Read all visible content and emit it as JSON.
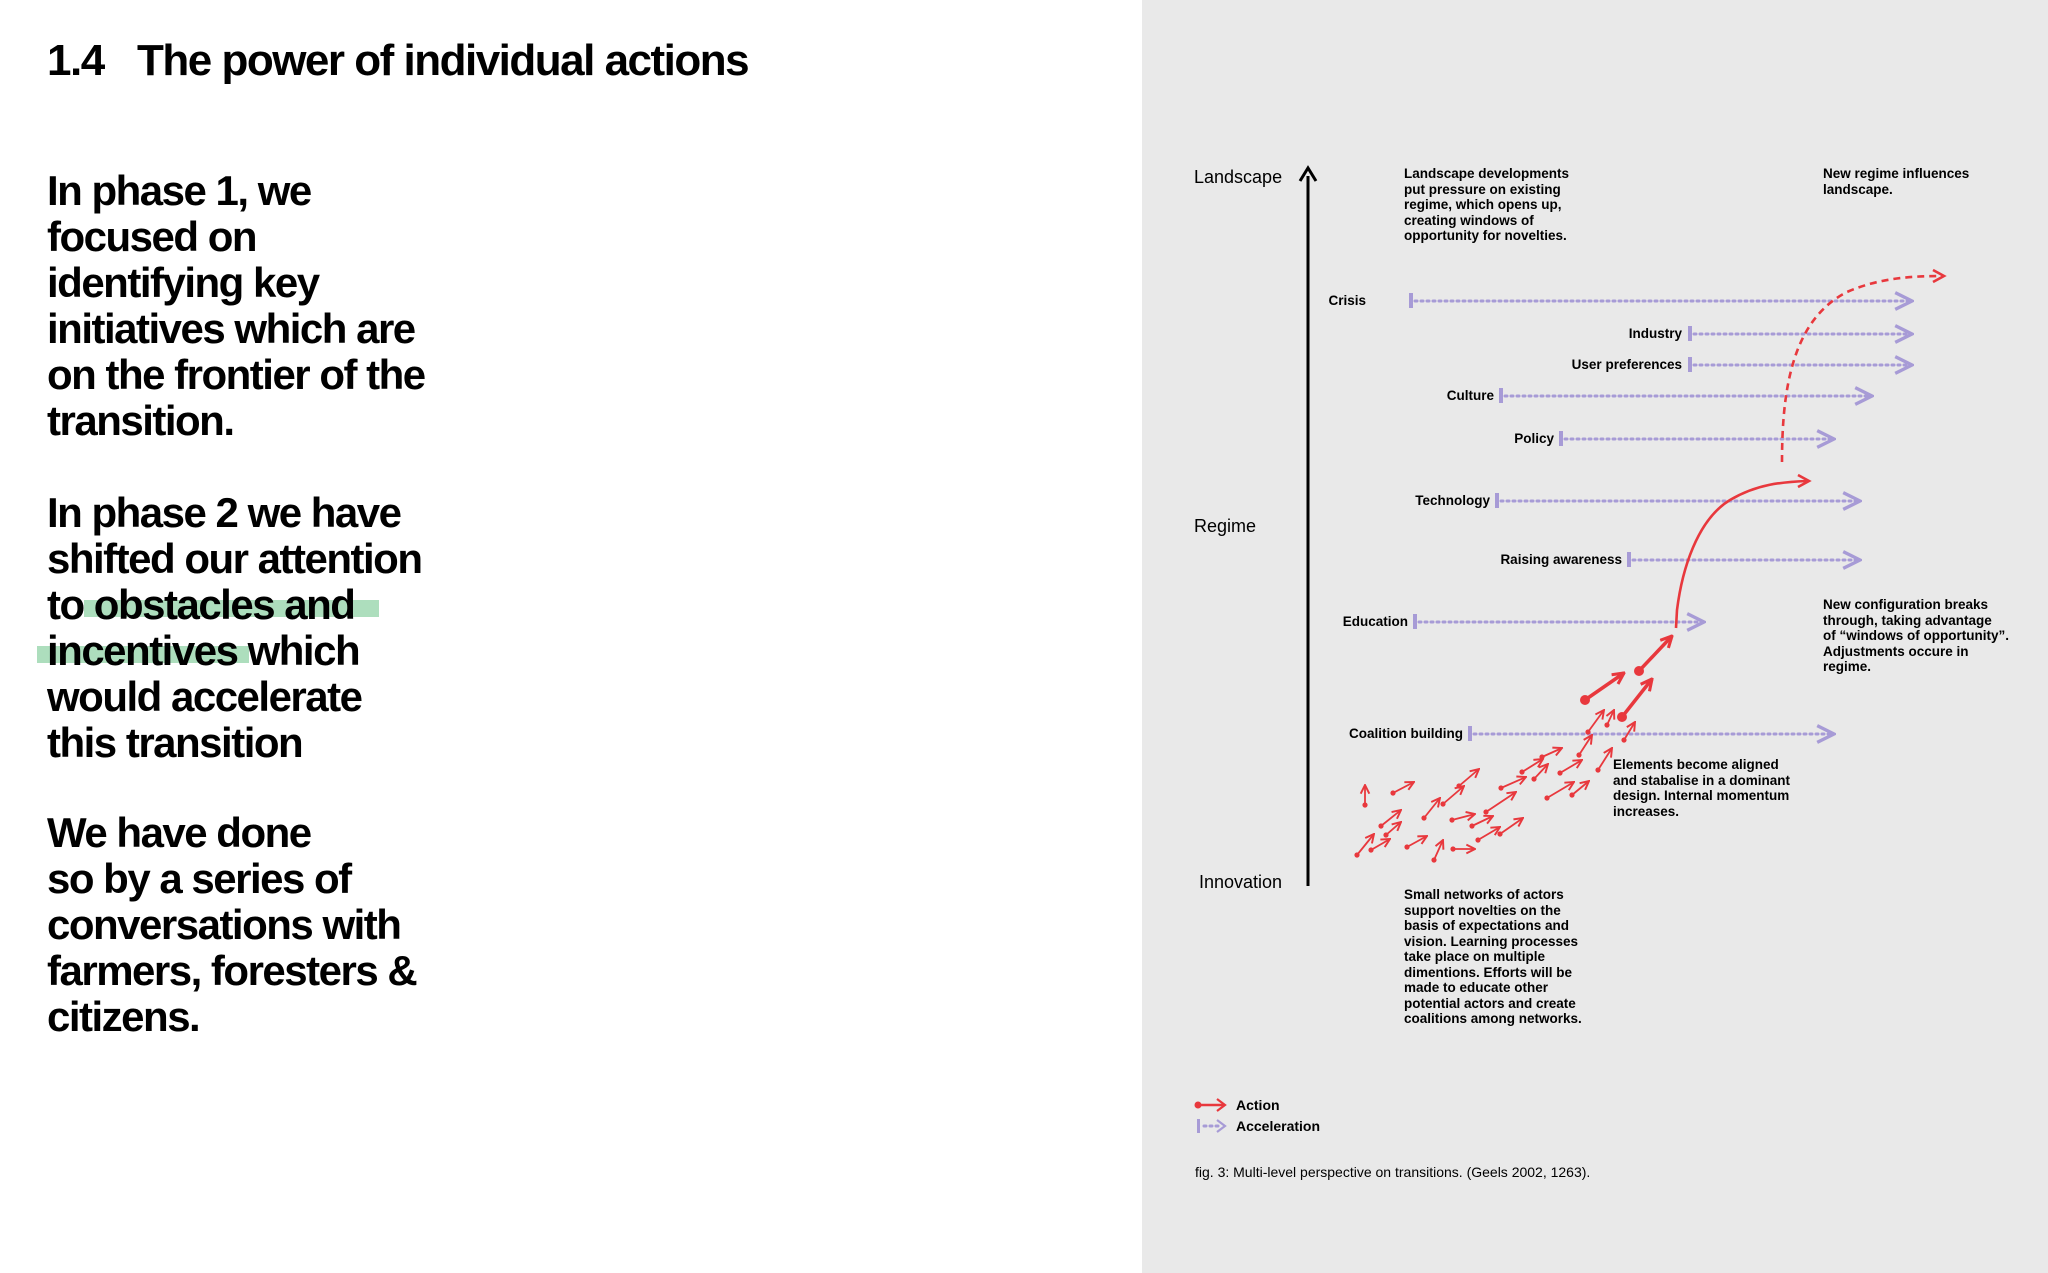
{
  "section": {
    "number": "1.4",
    "title": "The power of individual actions"
  },
  "paragraphs": [
    [
      "In phase 1, we",
      "focused on",
      "identifying key",
      "initiatives which are",
      "on the frontier of the",
      "transition."
    ],
    [
      "In phase 2 we have",
      "shifted our attention",
      "to obstacles and",
      "incentives which",
      "would accelerate",
      "this transition"
    ],
    [
      "We have done",
      "so by a series of",
      "conversations with",
      "farmers, foresters &",
      "citizens."
    ]
  ],
  "diagram": {
    "levels": {
      "landscape": "Landscape",
      "regime": "Regime",
      "innovation": "Innovation"
    },
    "notes": {
      "landscape_pressure": [
        "Landscape developments",
        "put pressure on existing",
        "regime, which opens up,",
        "creating windows of",
        "opportunity for novelties."
      ],
      "new_regime": [
        "New regime influences",
        "landscape."
      ],
      "breakthrough": [
        "New configuration breaks",
        "through, taking advantage",
        "of “windows of opportunity”.",
        "Adjustments occure in",
        "regime."
      ],
      "aligned": [
        "Elements become aligned",
        "and stabalise in a dominant",
        "design. Internal momentum",
        "increases."
      ],
      "networks": [
        "Small networks of actors",
        "support novelties on the",
        "basis of expectations and",
        "vision. Learning processes",
        "take place on multiple",
        "dimentions. Efforts will be",
        "made to educate other",
        "potential actors and create",
        "coalitions among networks."
      ]
    },
    "accelerations": [
      "Crisis",
      "Industry",
      "User preferences",
      "Culture",
      "Policy",
      "Technology",
      "Raising awareness",
      "Education",
      "Coalition building"
    ],
    "legend": {
      "action": "Action",
      "acceleration": "Acceleration"
    },
    "caption": "fig. 3: Multi-level perspective on transitions. (Geels 2002, 1263).",
    "colors": {
      "action": "#e8383d",
      "acceleration": "#a79bd6",
      "axis": "#000000",
      "panel_background": "#e9e9e9",
      "highlight": "#9fd8b1"
    },
    "icons": [
      "arrow-up-icon",
      "action-arrow-icon",
      "acceleration-arrow-icon"
    ]
  }
}
